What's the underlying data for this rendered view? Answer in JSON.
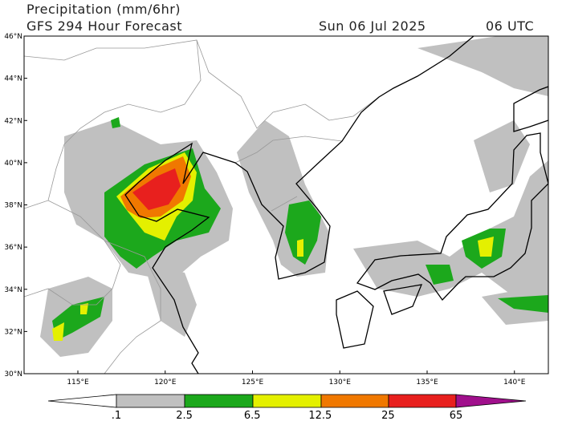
{
  "header": {
    "title": "Precipitation (mm/6hr)",
    "subtitle": "GFS 294 Hour Forecast",
    "date": "Sun 06 Jul 2025",
    "time": "06 UTC"
  },
  "map": {
    "lat_labels": [
      "46°N",
      "44°N",
      "42°N",
      "40°N",
      "38°N",
      "36°N",
      "34°N",
      "32°N",
      "30°N"
    ],
    "lon_labels": [
      "115°E",
      "120°E",
      "125°E",
      "130°E",
      "135°E",
      "140°E"
    ]
  },
  "colorbar": {
    "labels": [
      ".1",
      "2.5",
      "6.5",
      "12.5",
      "25",
      "65"
    ]
  }
}
